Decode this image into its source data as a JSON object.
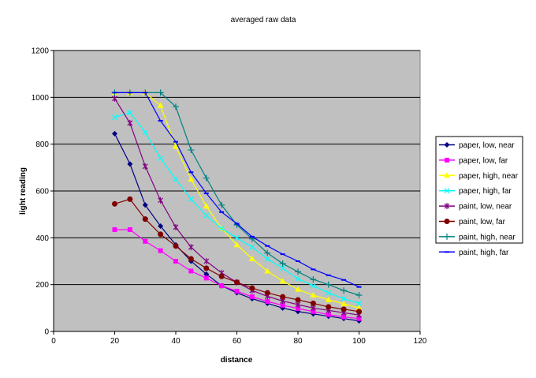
{
  "chart_data": {
    "type": "line",
    "title": "averaged raw data",
    "xlabel": "distance",
    "ylabel": "light reading",
    "xlim": [
      0,
      120
    ],
    "ylim": [
      0,
      1200
    ],
    "xticks": [
      0,
      20,
      40,
      60,
      80,
      100,
      120
    ],
    "yticks": [
      0,
      200,
      400,
      600,
      800,
      1000,
      1200
    ],
    "grid": "horizontal",
    "plot_background": "#c0c0c0",
    "legend_position": "right",
    "x": [
      20,
      25,
      30,
      35,
      40,
      45,
      50,
      55,
      60,
      65,
      70,
      75,
      80,
      85,
      90,
      95,
      100
    ],
    "series": [
      {
        "name": "paper, low, near",
        "color": "#000080",
        "marker": "diamond",
        "values": [
          845,
          715,
          540,
          450,
          370,
          300,
          245,
          195,
          165,
          140,
          120,
          100,
          85,
          75,
          65,
          55,
          45
        ]
      },
      {
        "name": "paper, low, far",
        "color": "#ff00ff",
        "marker": "square",
        "values": [
          435,
          435,
          385,
          345,
          300,
          258,
          228,
          195,
          172,
          148,
          128,
          112,
          98,
          85,
          72,
          62,
          55
        ]
      },
      {
        "name": "paper, high, near",
        "color": "#ffff00",
        "marker": "triangle",
        "values": [
          1020,
          1020,
          1020,
          965,
          790,
          650,
          535,
          440,
          370,
          310,
          258,
          215,
          180,
          155,
          135,
          118,
          100
        ]
      },
      {
        "name": "paper, high, far",
        "color": "#00ffff",
        "marker": "x",
        "values": [
          915,
          935,
          850,
          740,
          650,
          565,
          495,
          440,
          400,
          360,
          310,
          270,
          225,
          195,
          165,
          140,
          120
        ]
      },
      {
        "name": "paint, low, near",
        "color": "#800080",
        "marker": "star",
        "values": [
          995,
          890,
          705,
          560,
          445,
          360,
          300,
          250,
          210,
          175,
          150,
          130,
          115,
          100,
          90,
          80,
          70
        ]
      },
      {
        "name": "paint, low, far",
        "color": "#800000",
        "marker": "circle",
        "values": [
          545,
          565,
          480,
          415,
          365,
          310,
          270,
          235,
          210,
          185,
          165,
          148,
          135,
          120,
          105,
          95,
          85
        ]
      },
      {
        "name": "paint, high, near",
        "color": "#008080",
        "marker": "plus",
        "values": [
          1020,
          1020,
          1020,
          1020,
          960,
          775,
          655,
          540,
          455,
          395,
          335,
          290,
          255,
          222,
          200,
          175,
          155
        ]
      },
      {
        "name": "paint, high, far",
        "color": "#0000ff",
        "marker": "dash",
        "values": [
          1020,
          1020,
          1020,
          900,
          810,
          680,
          590,
          510,
          460,
          405,
          365,
          330,
          300,
          265,
          240,
          220,
          190
        ]
      }
    ]
  }
}
